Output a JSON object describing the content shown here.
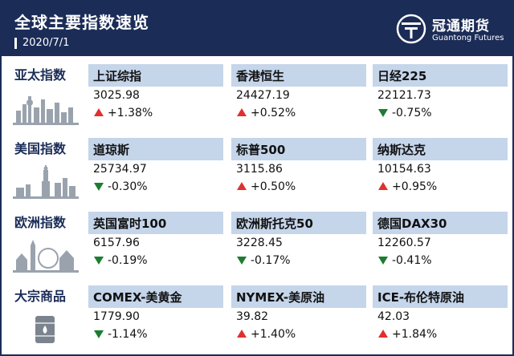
{
  "header": {
    "title": "全球主要指数速览",
    "date": "2020/7/1"
  },
  "logo": {
    "name_cn": "冠通期货",
    "name_en": "Guantong Futures"
  },
  "colors": {
    "header_bg": "#1b2c57",
    "cell_head_bg": "#c5d5ea",
    "up": "#e0302f",
    "down": "#1c7d30"
  },
  "rows": [
    {
      "label": "亚太指数",
      "icon": "city-skyline-icon",
      "items": [
        {
          "name": "上证综指",
          "value": "3025.98",
          "direction": "up",
          "change": "+1.38%"
        },
        {
          "name": "香港恒生",
          "value": "24427.19",
          "direction": "up",
          "change": "+0.52%"
        },
        {
          "name": "日经225",
          "value": "22121.73",
          "direction": "down",
          "change": "-0.75%"
        }
      ]
    },
    {
      "label": "美国指数",
      "icon": "statue-of-liberty-icon",
      "items": [
        {
          "name": "道琼斯",
          "value": "25734.97",
          "direction": "down",
          "change": "-0.30%"
        },
        {
          "name": "标普500",
          "value": "3115.86",
          "direction": "up",
          "change": "+0.50%"
        },
        {
          "name": "纳斯达克",
          "value": "10154.63",
          "direction": "up",
          "change": "+0.95%"
        }
      ]
    },
    {
      "label": "欧洲指数",
      "icon": "european-landmarks-icon",
      "items": [
        {
          "name": "英国富时100",
          "value": "6157.96",
          "direction": "down",
          "change": "-0.19%"
        },
        {
          "name": "欧洲斯托克50",
          "value": "3228.45",
          "direction": "down",
          "change": "-0.17%"
        },
        {
          "name": "德国DAX30",
          "value": "12260.57",
          "direction": "down",
          "change": "-0.41%"
        }
      ]
    },
    {
      "label": "大宗商品",
      "icon": "oil-barrel-icon",
      "items": [
        {
          "name": "COMEX-美黄金",
          "value": "1779.90",
          "direction": "down",
          "change": "-1.14%"
        },
        {
          "name": "NYMEX-美原油",
          "value": "39.82",
          "direction": "up",
          "change": "+1.40%"
        },
        {
          "name": "ICE-布伦特原油",
          "value": "42.03",
          "direction": "up",
          "change": "+1.84%"
        }
      ]
    }
  ]
}
